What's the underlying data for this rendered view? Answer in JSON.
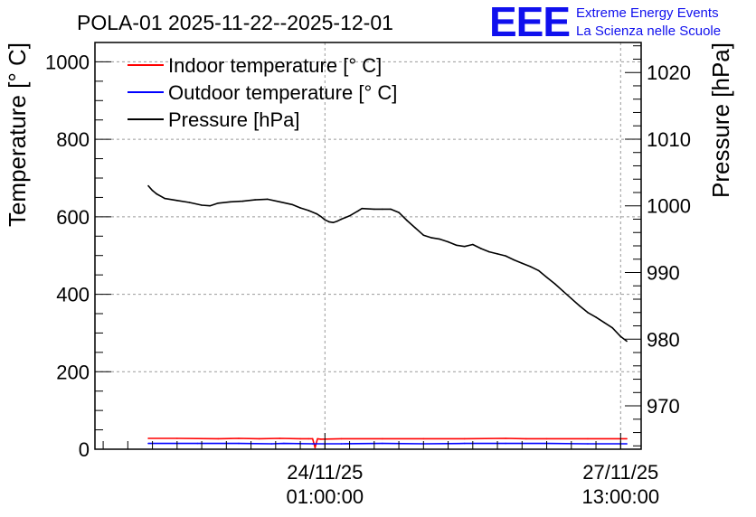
{
  "chart_data": {
    "type": "line",
    "title": "POLA-01 2025-11-22--2025-12-01",
    "ylabel_left": "Temperature [° C]",
    "ylabel_right": "Pressure [hPa]",
    "ylim_left": [
      0,
      1050
    ],
    "ylim_right": [
      963.5,
      1024.5
    ],
    "left_ticks": [
      "0",
      "200",
      "400",
      "600",
      "800",
      "1000"
    ],
    "left_tick_values": [
      0,
      200,
      400,
      600,
      800,
      1000
    ],
    "right_ticks": [
      "970",
      "980",
      "990",
      "1000",
      "1010",
      "1020"
    ],
    "right_tick_values": [
      970,
      980,
      990,
      1000,
      1010,
      1020
    ],
    "x_range_hours": [
      0,
      133
    ],
    "x_ticks": [
      {
        "hour": 56,
        "line1": "24/11/25",
        "line2": "01:00:00"
      },
      {
        "hour": 128,
        "line1": "27/11/25",
        "line2": "13:00:00"
      }
    ],
    "series": [
      {
        "name": "Indoor temperature [° C]",
        "color": "#ff0000",
        "axis": "left",
        "x": [
          13,
          20,
          30,
          35,
          40,
          45,
          50,
          52,
          53,
          53.6,
          54.2,
          55,
          60,
          70,
          80,
          90,
          100,
          105,
          110,
          120,
          129.5
        ],
        "y": [
          28,
          28,
          27,
          28,
          27,
          28,
          27,
          27,
          27,
          4,
          27,
          26,
          27,
          27,
          27,
          27,
          28,
          27,
          27,
          27,
          27
        ]
      },
      {
        "name": "Outdoor temperature [° C]",
        "color": "#0000ff",
        "axis": "left",
        "x": [
          13,
          25,
          35,
          43,
          46,
          53,
          60,
          70,
          80,
          90,
          100,
          110,
          120,
          129.5
        ],
        "y": [
          15,
          15,
          15,
          14,
          15,
          14,
          14,
          15,
          14,
          15,
          15,
          15,
          14,
          14
        ]
      },
      {
        "name": "Pressure [hPa]",
        "color": "#000000",
        "axis": "right",
        "x": [
          13,
          14,
          15,
          17,
          20,
          23,
          26,
          28,
          30,
          33,
          36,
          39,
          42,
          45,
          48,
          50,
          52,
          54,
          55,
          56,
          57,
          58,
          59,
          60,
          62,
          64,
          65,
          68,
          70,
          72,
          74,
          76,
          78,
          80,
          82,
          84,
          86,
          88,
          90,
          92,
          94,
          96,
          98,
          100,
          102,
          104,
          106,
          108,
          110,
          112,
          114,
          116,
          118,
          120,
          122,
          124,
          126,
          128,
          129.5
        ],
        "y": [
          1003.0,
          1002.3,
          1001.8,
          1001.1,
          1000.8,
          1000.5,
          1000.1,
          1000.0,
          1000.4,
          1000.6,
          1000.7,
          1000.9,
          1001.0,
          1000.6,
          1000.2,
          999.7,
          999.3,
          998.8,
          998.4,
          997.9,
          997.6,
          997.5,
          997.7,
          998.0,
          998.5,
          999.2,
          999.6,
          999.5,
          999.5,
          999.5,
          999.0,
          997.8,
          996.7,
          995.6,
          995.2,
          995.0,
          994.6,
          994.1,
          993.9,
          994.2,
          993.6,
          993.1,
          992.8,
          992.5,
          991.9,
          991.4,
          990.9,
          990.3,
          989.3,
          988.3,
          987.2,
          986.1,
          985.0,
          984.0,
          983.3,
          982.5,
          981.7,
          980.4,
          979.7
        ]
      }
    ],
    "grid": true,
    "legend_position": "top-left"
  },
  "logo": {
    "mark": "EEE",
    "line1": "Extreme Energy Events",
    "line2": "La Scienza nelle Scuole",
    "color": "#1010ee"
  }
}
